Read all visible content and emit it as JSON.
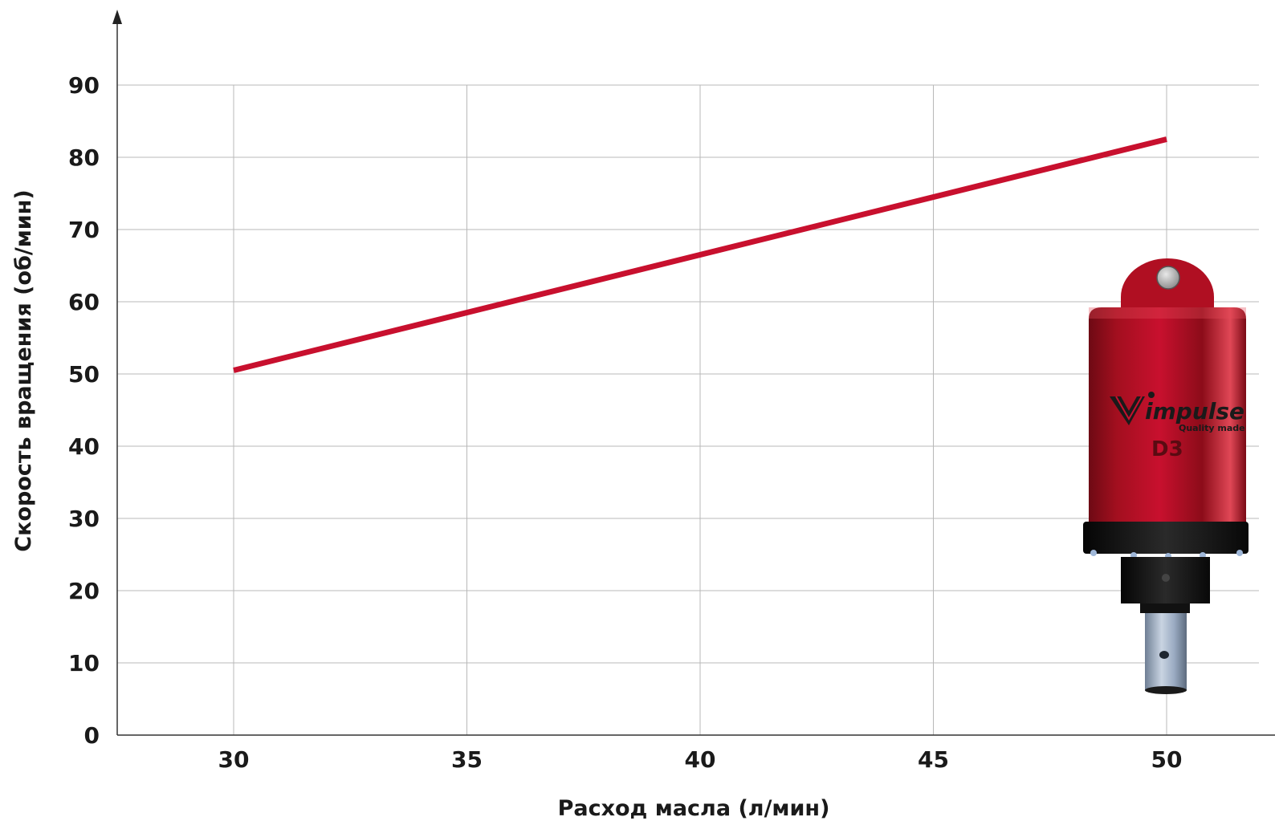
{
  "chart_data": {
    "type": "line",
    "xlabel": "Расход  масла (л/мин)",
    "ylabel": "Скорость вращения (об/мин)",
    "xlim": [
      27.5,
      52
    ],
    "ylim": [
      0,
      90
    ],
    "x_ticks": [
      30,
      35,
      40,
      45,
      50
    ],
    "y_ticks": [
      0,
      10,
      20,
      30,
      40,
      50,
      60,
      70,
      80,
      90
    ],
    "grid": true,
    "series": [
      {
        "x": [
          30,
          50
        ],
        "y": [
          50.5,
          82.5
        ],
        "color": "#c8102e"
      }
    ]
  },
  "product": {
    "brand": "impulse",
    "tagline": "Quality made",
    "model": "D3",
    "colors": {
      "body": "#c8102e",
      "collar": "#151515",
      "shaft": "#9fb0c6"
    }
  }
}
